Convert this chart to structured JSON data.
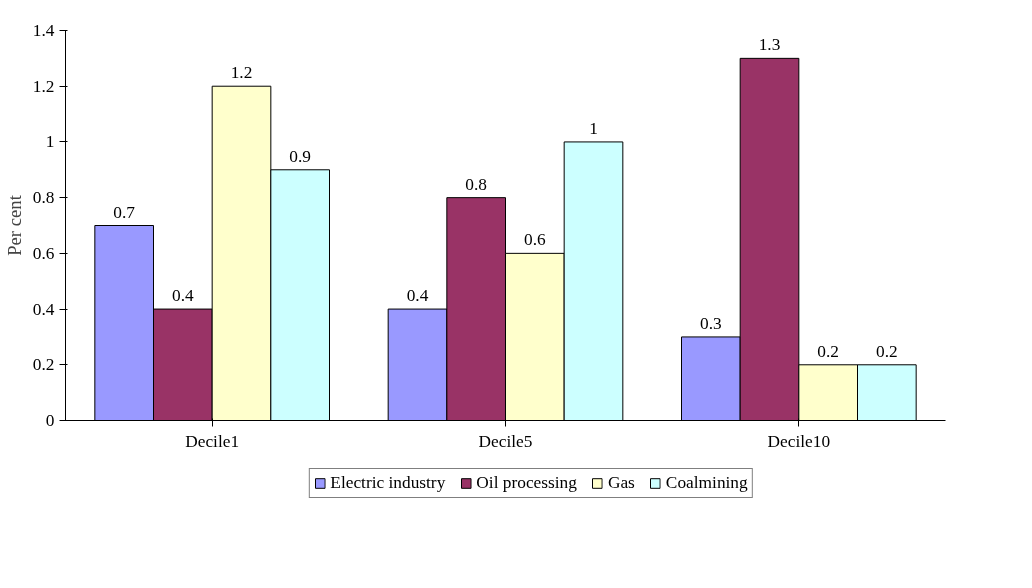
{
  "chart_data": {
    "type": "bar",
    "categories": [
      "Decile1",
      "Decile5",
      "Decile10"
    ],
    "ylabel": "Per cent",
    "ylim": [
      0,
      1.4
    ],
    "yticks": [
      0,
      0.2,
      0.4,
      0.6,
      0.8,
      1,
      1.2,
      1.4
    ],
    "grid": false,
    "legend": "bottom",
    "data_labels": true,
    "series": [
      {
        "name": "Electric industry",
        "color": "#9999ff",
        "values": [
          0.7,
          0.4,
          0.3
        ]
      },
      {
        "name": "Oil processing",
        "color": "#993366",
        "values": [
          0.4,
          0.8,
          1.3
        ]
      },
      {
        "name": "Gas",
        "color": "#ffffcc",
        "values": [
          1.2,
          0.6,
          0.2
        ]
      },
      {
        "name": "Coalmining",
        "color": "#ccffff",
        "values": [
          0.9,
          1,
          0.2
        ]
      }
    ]
  }
}
